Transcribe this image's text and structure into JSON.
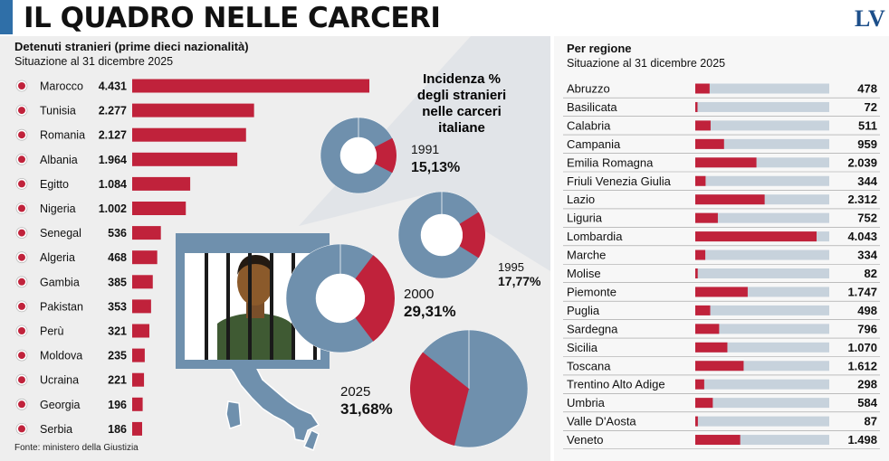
{
  "header": {
    "title": "IL QUADRO NELLE CARCERI",
    "logo_text": "LV",
    "accent_color": "#2f6fa8"
  },
  "left": {
    "title": "Detenuti stranieri (prime dieci nazionalità)",
    "subtitle": "Situazione al 31 dicembre 2025",
    "source": "Fonte: ministero della Giustizia"
  },
  "incidence": {
    "title_lines": [
      "Incidenza %",
      "degli stranieri",
      "nelle carceri",
      "italiane"
    ]
  },
  "right": {
    "title": "Per regione",
    "subtitle": "Situazione al 31 dicembre 2025"
  },
  "colors": {
    "bar": "#c0223b",
    "track": "#c7d2dc",
    "donut": "#6f90ad",
    "wedge": "#c0223b",
    "gray_panel": "#eeeeee"
  },
  "chart_data": [
    {
      "type": "bar",
      "title": "Detenuti stranieri (prime dieci nazionalità)",
      "subtitle": "Situazione al 31 dicembre 2025",
      "orientation": "horizontal",
      "categories": [
        "Marocco",
        "Tunisia",
        "Romania",
        "Albania",
        "Egitto",
        "Nigeria",
        "Senegal",
        "Algeria",
        "Gambia",
        "Pakistan",
        "Perù",
        "Moldova",
        "Ucraina",
        "Georgia",
        "Serbia"
      ],
      "value_labels": [
        "4.431",
        "2.277",
        "2.127",
        "1.964",
        "1.084",
        "1.002",
        "536",
        "468",
        "385",
        "353",
        "321",
        "235",
        "221",
        "196",
        "186"
      ],
      "values": [
        4431,
        2277,
        2127,
        1964,
        1084,
        1002,
        536,
        468,
        385,
        353,
        321,
        235,
        221,
        196,
        186
      ],
      "flag_icons": [
        "morocco-flag-icon",
        "tunisia-flag-icon",
        "romania-flag-icon",
        "albania-flag-icon",
        "egypt-flag-icon",
        "nigeria-flag-icon",
        "senegal-flag-icon",
        "algeria-flag-icon",
        "gambia-flag-icon",
        "pakistan-flag-icon",
        "peru-flag-icon",
        "moldova-flag-icon",
        "ukraine-flag-icon",
        "georgia-flag-icon",
        "serbia-flag-icon"
      ],
      "bar_color": "#c0223b",
      "grid": false
    },
    {
      "type": "pie",
      "title": "Incidenza % degli stranieri nelle carceri italiane",
      "style": "donut",
      "slices": [
        {
          "year": "1991",
          "label": "15,13%",
          "value": 15.13
        },
        {
          "year": "1995",
          "label": "17,77%",
          "value": 17.77
        },
        {
          "year": "2000",
          "label": "29,31%",
          "value": 29.31
        },
        {
          "year": "2025",
          "label": "31,68%",
          "value": 31.68
        }
      ]
    },
    {
      "type": "bar",
      "title": "Per regione",
      "subtitle": "Situazione al 31 dicembre 2025",
      "orientation": "horizontal",
      "categories": [
        "Abruzzo",
        "Basilicata",
        "Calabria",
        "Campania",
        "Emilia Romagna",
        "Friuli Venezia Giulia",
        "Lazio",
        "Liguria",
        "Lombardia",
        "Marche",
        "Molise",
        "Piemonte",
        "Puglia",
        "Sardegna",
        "Sicilia",
        "Toscana",
        "Trentino Alto Adige",
        "Umbria",
        "Valle D'Aosta",
        "Veneto"
      ],
      "value_labels": [
        "478",
        "72",
        "511",
        "959",
        "2.039",
        "344",
        "2.312",
        "752",
        "4.043",
        "334",
        "82",
        "1.747",
        "498",
        "796",
        "1.070",
        "1.612",
        "298",
        "584",
        "87",
        "1.498"
      ],
      "values": [
        478,
        72,
        511,
        959,
        2039,
        344,
        2312,
        752,
        4043,
        334,
        82,
        1747,
        498,
        796,
        1070,
        1612,
        298,
        584,
        87,
        1498
      ],
      "bar_color": "#c0223b",
      "track_color": "#c7d2dc",
      "grid": false
    }
  ]
}
